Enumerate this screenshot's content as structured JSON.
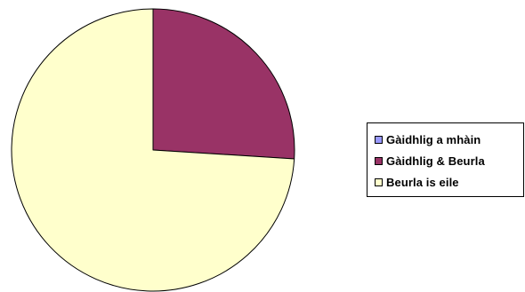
{
  "chart_data": {
    "type": "pie",
    "title": "",
    "series": [
      {
        "labels": [
          "Gàidhlig a mhàin",
          "Gàidhlig & Beurla",
          "Beurla is eile"
        ],
        "values": [
          0,
          26,
          74
        ],
        "colors": [
          "#9999FF",
          "#993366",
          "#FFFFCC"
        ]
      }
    ],
    "legend": {
      "placement": "right",
      "items": [
        {
          "label": "Gàidhlig a mhàin",
          "color": "#9999FF"
        },
        {
          "label": "Gàidhlig & Beurla",
          "color": "#993366"
        },
        {
          "label": "Beurla is eile",
          "color": "#FFFFCC"
        }
      ]
    }
  }
}
